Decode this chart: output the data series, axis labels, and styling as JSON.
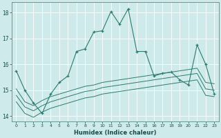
{
  "xlabel": "Humidex (Indice chaleur)",
  "bg_color": "#ceeaea",
  "line_color": "#2d7a6e",
  "grid_color": "#b8d8d8",
  "xlim": [
    -0.5,
    23.5
  ],
  "ylim": [
    13.8,
    18.4
  ],
  "yticks": [
    14,
    15,
    16,
    17,
    18
  ],
  "xticks": [
    0,
    1,
    2,
    3,
    4,
    5,
    6,
    7,
    8,
    9,
    10,
    11,
    12,
    13,
    14,
    15,
    16,
    17,
    18,
    19,
    20,
    21,
    22,
    23
  ],
  "series1_x": [
    0,
    1,
    2,
    3,
    4,
    5,
    6,
    7,
    8,
    9,
    10,
    11,
    12,
    13,
    14,
    15,
    16,
    17,
    18,
    19,
    20,
    21,
    22,
    23
  ],
  "series1_y": [
    15.75,
    15.0,
    14.5,
    14.1,
    14.85,
    15.3,
    15.55,
    16.5,
    16.6,
    17.25,
    17.3,
    18.05,
    17.55,
    18.15,
    16.5,
    16.5,
    15.55,
    15.65,
    15.7,
    15.4,
    15.2,
    16.75,
    16.0,
    14.85
  ],
  "series2_x": [
    0,
    1,
    2,
    3,
    4,
    5,
    6,
    7,
    8,
    9,
    10,
    11,
    12,
    13,
    14,
    15,
    16,
    17,
    18,
    19,
    20,
    21,
    22,
    23
  ],
  "series2_y": [
    15.05,
    14.55,
    14.4,
    14.6,
    14.75,
    14.85,
    14.95,
    15.05,
    15.15,
    15.2,
    15.3,
    15.35,
    15.4,
    15.45,
    15.5,
    15.55,
    15.6,
    15.65,
    15.7,
    15.75,
    15.8,
    15.85,
    15.3,
    15.25
  ],
  "series3_x": [
    0,
    1,
    2,
    3,
    4,
    5,
    6,
    7,
    8,
    9,
    10,
    11,
    12,
    13,
    14,
    15,
    16,
    17,
    18,
    19,
    20,
    21,
    22,
    23
  ],
  "series3_y": [
    14.8,
    14.35,
    14.2,
    14.4,
    14.55,
    14.65,
    14.75,
    14.85,
    14.95,
    15.0,
    15.1,
    15.15,
    15.2,
    15.25,
    15.3,
    15.35,
    15.4,
    15.45,
    15.5,
    15.55,
    15.6,
    15.65,
    15.05,
    15.0
  ],
  "series4_x": [
    0,
    1,
    2,
    3,
    4,
    5,
    6,
    7,
    8,
    9,
    10,
    11,
    12,
    13,
    14,
    15,
    16,
    17,
    18,
    19,
    20,
    21,
    22,
    23
  ],
  "series4_y": [
    14.55,
    14.1,
    13.95,
    14.15,
    14.3,
    14.4,
    14.5,
    14.6,
    14.7,
    14.75,
    14.85,
    14.9,
    14.95,
    15.0,
    15.05,
    15.1,
    15.15,
    15.2,
    15.25,
    15.3,
    15.35,
    15.4,
    14.8,
    14.75
  ]
}
